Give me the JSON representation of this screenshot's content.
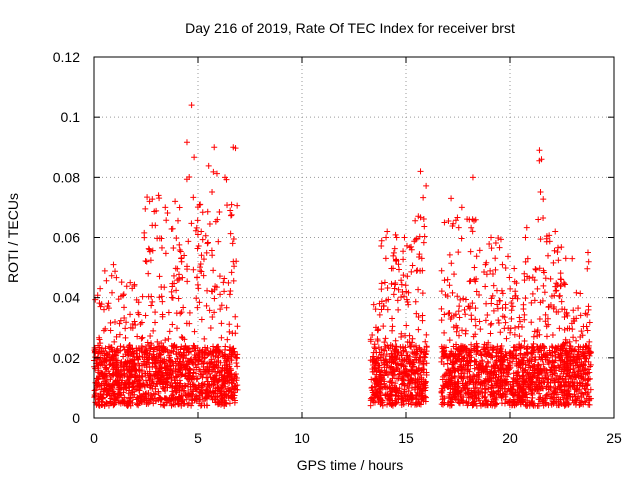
{
  "chart_data": {
    "type": "scatter",
    "title": "Day 216 of 2019, Rate Of TEC Index for receiver brst",
    "xlabel": "GPS time / hours",
    "ylabel": "ROTI / TECUs",
    "xlim": [
      0,
      25
    ],
    "ylim": [
      0,
      0.12
    ],
    "xticks": [
      0,
      5,
      10,
      15,
      20,
      25
    ],
    "xtick_labels": [
      "0",
      "5",
      "10",
      "15",
      "20",
      "25"
    ],
    "yticks": [
      0,
      0.02,
      0.04,
      0.06,
      0.08,
      0.1,
      0.12
    ],
    "ytick_labels": [
      "0",
      "0.02",
      "0.04",
      "0.06",
      "0.08",
      "0.1",
      "0.12"
    ],
    "grid": true,
    "marker": "+",
    "color": "#ff0000",
    "series": [
      {
        "name": "ROTI",
        "envelope_note": "dense cloud of per-epoch ROTI values; envelope summary [start_hour, end_hour, typical_max, peak_max]",
        "segments": [
          [
            0.0,
            0.5,
            0.03,
            0.043
          ],
          [
            0.5,
            1.5,
            0.04,
            0.051
          ],
          [
            1.5,
            2.4,
            0.033,
            0.045
          ],
          [
            2.4,
            3.2,
            0.06,
            0.074
          ],
          [
            3.2,
            3.8,
            0.045,
            0.07
          ],
          [
            3.8,
            4.4,
            0.055,
            0.072
          ],
          [
            4.4,
            4.9,
            0.06,
            0.104
          ],
          [
            4.9,
            5.5,
            0.06,
            0.071
          ],
          [
            5.5,
            6.0,
            0.05,
            0.09
          ],
          [
            6.0,
            6.4,
            0.055,
            0.08
          ],
          [
            6.4,
            6.9,
            0.07,
            0.09
          ],
          [
            13.3,
            13.8,
            0.035,
            0.038
          ],
          [
            13.8,
            14.5,
            0.045,
            0.062
          ],
          [
            14.5,
            15.3,
            0.05,
            0.06
          ],
          [
            15.3,
            16.0,
            0.06,
            0.082
          ],
          [
            16.7,
            17.4,
            0.05,
            0.073
          ],
          [
            17.4,
            18.0,
            0.045,
            0.07
          ],
          [
            18.0,
            18.6,
            0.06,
            0.08
          ],
          [
            18.6,
            19.6,
            0.045,
            0.06
          ],
          [
            19.6,
            20.8,
            0.045,
            0.06
          ],
          [
            20.8,
            21.4,
            0.05,
            0.066
          ],
          [
            21.4,
            21.7,
            0.06,
            0.089
          ],
          [
            21.7,
            22.6,
            0.05,
            0.062
          ],
          [
            22.6,
            23.9,
            0.035,
            0.055
          ]
        ]
      }
    ]
  }
}
